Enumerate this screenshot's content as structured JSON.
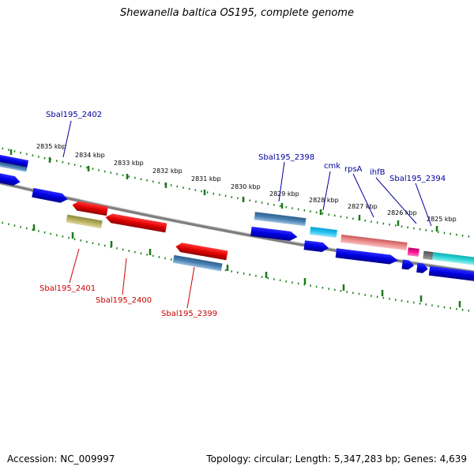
{
  "title": "Shewanella baltica OS195, complete genome",
  "footer": {
    "accession": "Accession: NC_009997",
    "topology": "Topology: circular; Length: 5,347,283 bp; Genes: 4,639"
  },
  "colors": {
    "backbone": "#808080",
    "ticks": "#1a7a1a",
    "label_forward": "#00009c",
    "label_reverse": "#cc0000"
  },
  "scale": {
    "unit": "kbp",
    "labels": [
      "2835 kbp",
      "2834 kbp",
      "2833 kbp",
      "2832 kbp",
      "2831 kbp",
      "2830 kbp",
      "2829 kbp",
      "2828 kbp",
      "2827 kbp",
      "2826 kbp",
      "2825 kbp"
    ]
  },
  "gene_labels": {
    "forward": [
      "Sbal195_2402",
      "Sbal195_2398",
      "cmk",
      "rpsA",
      "ihfB",
      "Sbal195_2394"
    ],
    "reverse": [
      "Sbal195_2401",
      "Sbal195_2400",
      "Sbal195_2399"
    ]
  }
}
